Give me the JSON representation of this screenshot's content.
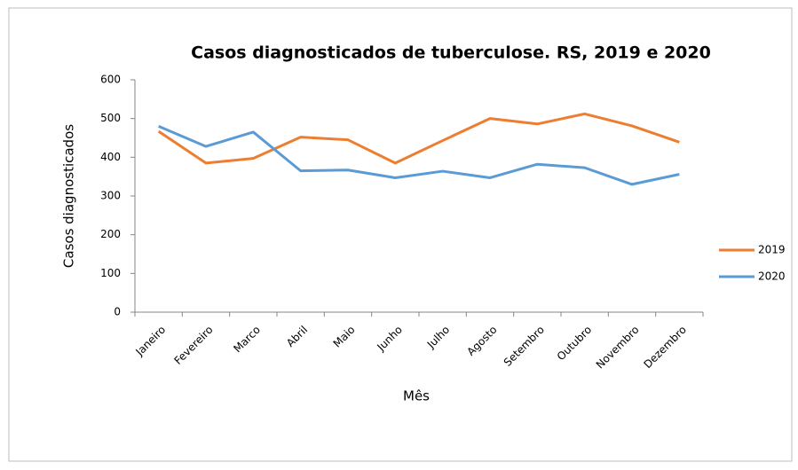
{
  "chart_data": {
    "type": "line",
    "title": "Casos diagnosticados  de tuberculose. RS, 2019 e 2020",
    "x_label": "Mês",
    "y_label": "Casos diagnosticados",
    "categories": [
      "Janeiro",
      "Fevereiro",
      "Marco",
      "Abril",
      "Maio",
      "Junho",
      "Julho",
      "Agosto",
      "Setembro",
      "Outubro",
      "Novembro",
      "Dezembro"
    ],
    "series": [
      {
        "name": "2019",
        "color": "#ed7d31",
        "values": [
          467,
          385,
          397,
          452,
          445,
          385,
          443,
          500,
          486,
          512,
          481,
          439
        ]
      },
      {
        "name": "2020",
        "color": "#5b9bd5",
        "values": [
          480,
          428,
          465,
          365,
          367,
          347,
          364,
          347,
          382,
          373,
          330,
          356
        ]
      }
    ],
    "ylim": [
      0,
      600
    ],
    "yticks": [
      0,
      100,
      200,
      300,
      400,
      500,
      600
    ],
    "grid": false,
    "legend": "right"
  }
}
